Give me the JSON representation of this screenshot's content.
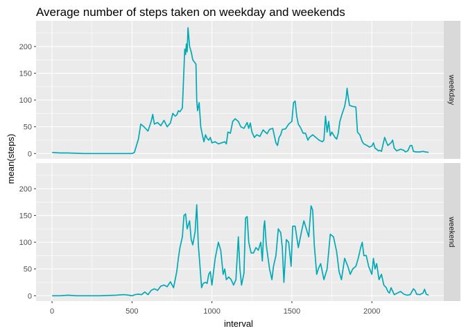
{
  "chart_data": {
    "type": "line",
    "title": "Average number of steps taken on weekday and weekends",
    "xlabel": "interval",
    "ylabel": "mean(steps)",
    "xlim": [
      -100,
      2450
    ],
    "ylim": [
      -10,
      248
    ],
    "x_ticks": [
      0,
      500,
      1000,
      1500,
      2000
    ],
    "y_ticks": [
      0,
      50,
      100,
      150,
      200
    ],
    "grid": true,
    "line_color": "#00a9b6",
    "panel_background": "#ebebeb",
    "strip_background": "#d9d9d9",
    "panels": [
      {
        "label": "weekday",
        "points": [
          [
            0,
            2
          ],
          [
            50,
            1
          ],
          [
            100,
            1
          ],
          [
            200,
            0
          ],
          [
            300,
            0
          ],
          [
            400,
            0
          ],
          [
            500,
            0
          ],
          [
            515,
            2
          ],
          [
            540,
            27
          ],
          [
            555,
            55
          ],
          [
            575,
            50
          ],
          [
            600,
            42
          ],
          [
            620,
            60
          ],
          [
            630,
            73
          ],
          [
            640,
            55
          ],
          [
            660,
            58
          ],
          [
            680,
            52
          ],
          [
            700,
            62
          ],
          [
            720,
            50
          ],
          [
            740,
            57
          ],
          [
            755,
            75
          ],
          [
            770,
            70
          ],
          [
            780,
            72
          ],
          [
            790,
            80
          ],
          [
            800,
            78
          ],
          [
            815,
            85
          ],
          [
            820,
            120
          ],
          [
            830,
            195
          ],
          [
            835,
            185
          ],
          [
            840,
            205
          ],
          [
            845,
            190
          ],
          [
            850,
            235
          ],
          [
            860,
            200
          ],
          [
            870,
            190
          ],
          [
            880,
            175
          ],
          [
            900,
            167
          ],
          [
            905,
            100
          ],
          [
            910,
            80
          ],
          [
            920,
            95
          ],
          [
            930,
            50
          ],
          [
            940,
            35
          ],
          [
            950,
            22
          ],
          [
            960,
            35
          ],
          [
            970,
            28
          ],
          [
            980,
            25
          ],
          [
            990,
            30
          ],
          [
            1000,
            20
          ],
          [
            1020,
            22
          ],
          [
            1040,
            18
          ],
          [
            1060,
            20
          ],
          [
            1080,
            22
          ],
          [
            1090,
            18
          ],
          [
            1100,
            40
          ],
          [
            1115,
            38
          ],
          [
            1130,
            60
          ],
          [
            1145,
            65
          ],
          [
            1165,
            60
          ],
          [
            1180,
            50
          ],
          [
            1200,
            47
          ],
          [
            1220,
            58
          ],
          [
            1230,
            47
          ],
          [
            1240,
            57
          ],
          [
            1250,
            40
          ],
          [
            1265,
            30
          ],
          [
            1280,
            35
          ],
          [
            1300,
            32
          ],
          [
            1320,
            44
          ],
          [
            1345,
            37
          ],
          [
            1360,
            45
          ],
          [
            1380,
            47
          ],
          [
            1400,
            20
          ],
          [
            1410,
            15
          ],
          [
            1420,
            30
          ],
          [
            1430,
            35
          ],
          [
            1440,
            45
          ],
          [
            1460,
            46
          ],
          [
            1480,
            55
          ],
          [
            1500,
            60
          ],
          [
            1510,
            95
          ],
          [
            1520,
            98
          ],
          [
            1530,
            70
          ],
          [
            1540,
            55
          ],
          [
            1555,
            48
          ],
          [
            1570,
            38
          ],
          [
            1585,
            38
          ],
          [
            1600,
            25
          ],
          [
            1610,
            30
          ],
          [
            1630,
            35
          ],
          [
            1650,
            30
          ],
          [
            1670,
            25
          ],
          [
            1690,
            22
          ],
          [
            1700,
            25
          ],
          [
            1710,
            70
          ],
          [
            1720,
            40
          ],
          [
            1730,
            60
          ],
          [
            1740,
            33
          ],
          [
            1750,
            40
          ],
          [
            1760,
            35
          ],
          [
            1770,
            30
          ],
          [
            1780,
            27
          ],
          [
            1790,
            38
          ],
          [
            1800,
            60
          ],
          [
            1815,
            75
          ],
          [
            1830,
            88
          ],
          [
            1840,
            105
          ],
          [
            1845,
            122
          ],
          [
            1850,
            110
          ],
          [
            1860,
            90
          ],
          [
            1880,
            88
          ],
          [
            1900,
            87
          ],
          [
            1910,
            40
          ],
          [
            1925,
            35
          ],
          [
            1940,
            22
          ],
          [
            1950,
            18
          ],
          [
            1970,
            15
          ],
          [
            1985,
            12
          ],
          [
            2000,
            14
          ],
          [
            2010,
            20
          ],
          [
            2020,
            10
          ],
          [
            2030,
            8
          ],
          [
            2040,
            5
          ],
          [
            2050,
            6
          ],
          [
            2060,
            4
          ],
          [
            2080,
            30
          ],
          [
            2090,
            22
          ],
          [
            2100,
            15
          ],
          [
            2120,
            20
          ],
          [
            2130,
            25
          ],
          [
            2140,
            10
          ],
          [
            2155,
            5
          ],
          [
            2180,
            8
          ],
          [
            2200,
            6
          ],
          [
            2210,
            3
          ],
          [
            2225,
            5
          ],
          [
            2240,
            15
          ],
          [
            2250,
            15
          ],
          [
            2260,
            4
          ],
          [
            2275,
            3
          ],
          [
            2300,
            3
          ],
          [
            2320,
            4
          ],
          [
            2335,
            3
          ],
          [
            2355,
            2
          ]
        ]
      },
      {
        "label": "weekend",
        "points": [
          [
            0,
            0
          ],
          [
            50,
            0
          ],
          [
            100,
            1
          ],
          [
            150,
            0
          ],
          [
            200,
            0
          ],
          [
            300,
            0
          ],
          [
            400,
            1
          ],
          [
            450,
            2
          ],
          [
            480,
            1
          ],
          [
            500,
            0
          ],
          [
            520,
            2
          ],
          [
            540,
            3
          ],
          [
            560,
            2
          ],
          [
            580,
            7
          ],
          [
            600,
            2
          ],
          [
            620,
            10
          ],
          [
            640,
            13
          ],
          [
            660,
            10
          ],
          [
            680,
            18
          ],
          [
            700,
            20
          ],
          [
            720,
            17
          ],
          [
            740,
            26
          ],
          [
            760,
            15
          ],
          [
            780,
            45
          ],
          [
            790,
            70
          ],
          [
            800,
            90
          ],
          [
            815,
            110
          ],
          [
            825,
            150
          ],
          [
            835,
            153
          ],
          [
            845,
            125
          ],
          [
            860,
            140
          ],
          [
            870,
            105
          ],
          [
            880,
            95
          ],
          [
            895,
            120
          ],
          [
            905,
            170
          ],
          [
            915,
            95
          ],
          [
            925,
            55
          ],
          [
            935,
            15
          ],
          [
            945,
            23
          ],
          [
            960,
            25
          ],
          [
            970,
            23
          ],
          [
            980,
            40
          ],
          [
            990,
            45
          ],
          [
            1000,
            20
          ],
          [
            1020,
            70
          ],
          [
            1040,
            100
          ],
          [
            1055,
            85
          ],
          [
            1070,
            40
          ],
          [
            1080,
            50
          ],
          [
            1090,
            30
          ],
          [
            1105,
            35
          ],
          [
            1120,
            30
          ],
          [
            1135,
            20
          ],
          [
            1150,
            30
          ],
          [
            1165,
            110
          ],
          [
            1175,
            50
          ],
          [
            1185,
            20
          ],
          [
            1200,
            42
          ],
          [
            1210,
            145
          ],
          [
            1220,
            148
          ],
          [
            1230,
            100
          ],
          [
            1245,
            80
          ],
          [
            1260,
            80
          ],
          [
            1275,
            90
          ],
          [
            1290,
            85
          ],
          [
            1305,
            100
          ],
          [
            1315,
            65
          ],
          [
            1325,
            130
          ],
          [
            1330,
            140
          ],
          [
            1340,
            95
          ],
          [
            1360,
            50
          ],
          [
            1375,
            30
          ],
          [
            1385,
            55
          ],
          [
            1400,
            75
          ],
          [
            1415,
            125
          ],
          [
            1430,
            118
          ],
          [
            1440,
            90
          ],
          [
            1450,
            25
          ],
          [
            1465,
            105
          ],
          [
            1480,
            100
          ],
          [
            1495,
            55
          ],
          [
            1505,
            130
          ],
          [
            1520,
            130
          ],
          [
            1540,
            90
          ],
          [
            1560,
            120
          ],
          [
            1575,
            140
          ],
          [
            1590,
            125
          ],
          [
            1605,
            110
          ],
          [
            1620,
            168
          ],
          [
            1630,
            160
          ],
          [
            1640,
            95
          ],
          [
            1655,
            40
          ],
          [
            1665,
            50
          ],
          [
            1680,
            60
          ],
          [
            1700,
            30
          ],
          [
            1720,
            50
          ],
          [
            1740,
            115
          ],
          [
            1760,
            110
          ],
          [
            1780,
            82
          ],
          [
            1795,
            45
          ],
          [
            1810,
            30
          ],
          [
            1830,
            70
          ],
          [
            1850,
            55
          ],
          [
            1865,
            40
          ],
          [
            1880,
            50
          ],
          [
            1900,
            55
          ],
          [
            1915,
            70
          ],
          [
            1930,
            90
          ],
          [
            1940,
            100
          ],
          [
            1950,
            75
          ],
          [
            1965,
            75
          ],
          [
            1980,
            55
          ],
          [
            2000,
            40
          ],
          [
            2010,
            70
          ],
          [
            2020,
            50
          ],
          [
            2030,
            60
          ],
          [
            2045,
            30
          ],
          [
            2060,
            40
          ],
          [
            2075,
            20
          ],
          [
            2090,
            15
          ],
          [
            2100,
            8
          ],
          [
            2110,
            5
          ],
          [
            2120,
            15
          ],
          [
            2140,
            2
          ],
          [
            2160,
            5
          ],
          [
            2180,
            8
          ],
          [
            2200,
            3
          ],
          [
            2220,
            1
          ],
          [
            2240,
            2
          ],
          [
            2260,
            13
          ],
          [
            2270,
            10
          ],
          [
            2280,
            3
          ],
          [
            2300,
            2
          ],
          [
            2320,
            5
          ],
          [
            2330,
            12
          ],
          [
            2340,
            3
          ],
          [
            2355,
            1
          ]
        ]
      }
    ]
  }
}
